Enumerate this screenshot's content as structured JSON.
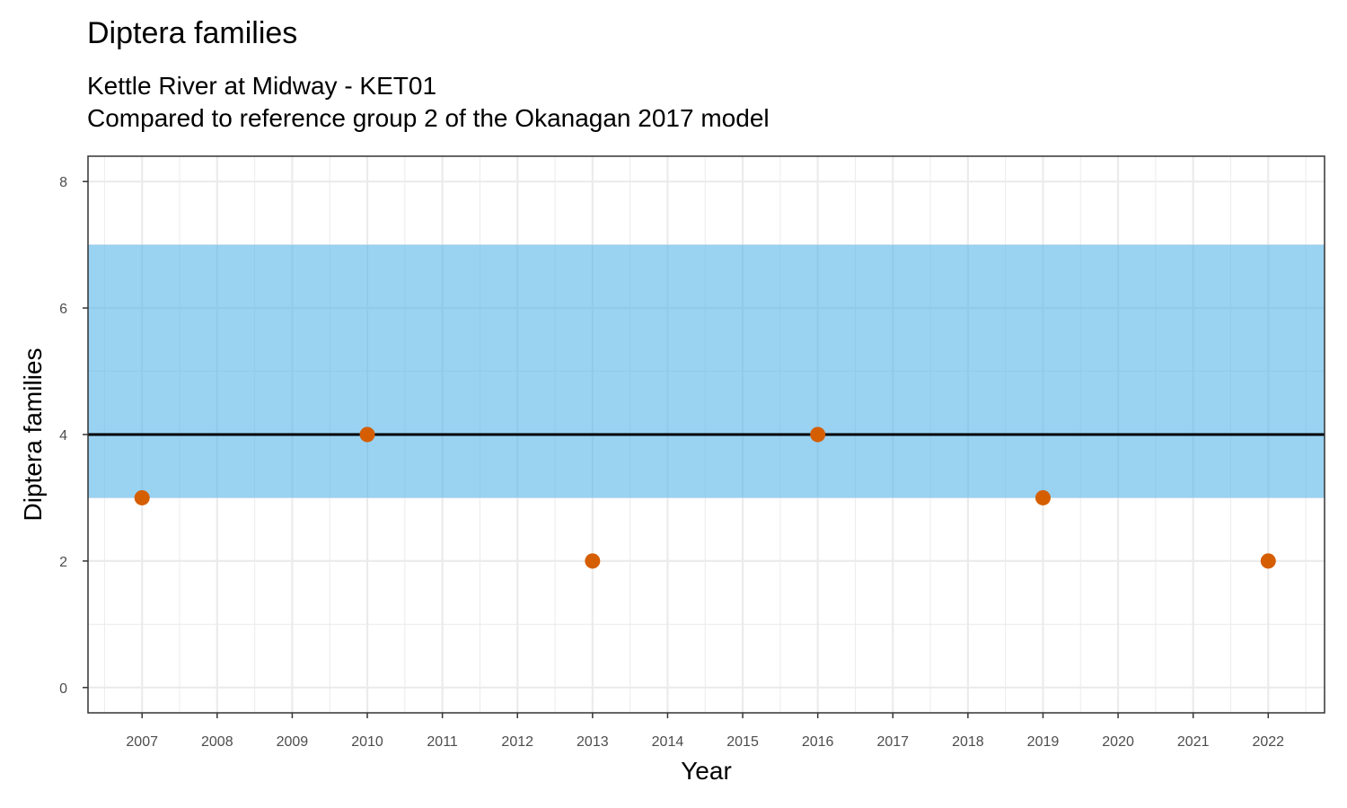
{
  "chart_data": {
    "type": "scatter",
    "title": "Diptera families",
    "subtitle": [
      "Kettle River at Midway - KET01",
      "Compared to reference group 2 of the Okanagan 2017 model"
    ],
    "xlabel": "Year",
    "ylabel": "Diptera families",
    "xlim": [
      2006.28,
      2022.75
    ],
    "ylim": [
      -0.4,
      8.4
    ],
    "x_ticks": [
      2007,
      2008,
      2009,
      2010,
      2011,
      2012,
      2013,
      2014,
      2015,
      2016,
      2017,
      2018,
      2019,
      2020,
      2021,
      2022
    ],
    "y_ticks": [
      0,
      2,
      4,
      6,
      8
    ],
    "grid": true,
    "reference_band": {
      "ymin": 3,
      "ymax": 7,
      "color": "#56B4E9"
    },
    "reference_line": {
      "y": 4,
      "color": "#000000"
    },
    "series": [
      {
        "color": "#D55E00",
        "points": [
          {
            "x": 2007,
            "y": 3
          },
          {
            "x": 2010,
            "y": 4
          },
          {
            "x": 2013,
            "y": 2
          },
          {
            "x": 2016,
            "y": 4
          },
          {
            "x": 2019,
            "y": 3
          },
          {
            "x": 2022,
            "y": 2
          }
        ]
      }
    ]
  }
}
